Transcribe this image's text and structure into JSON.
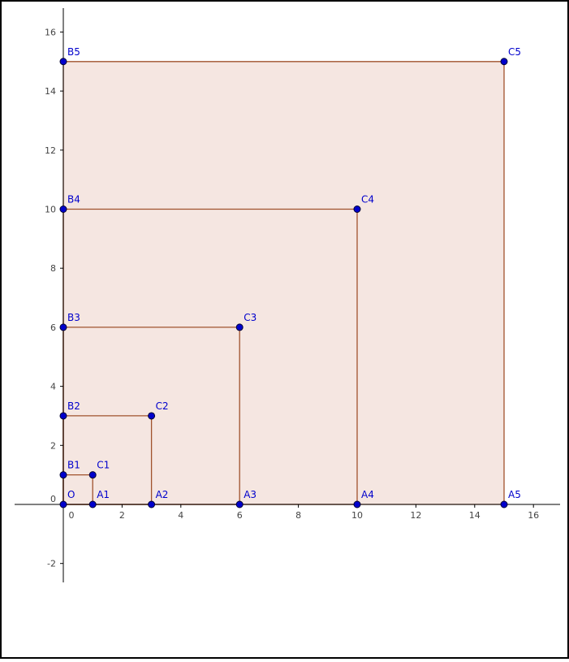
{
  "canvas": {
    "background": "#ffffff",
    "border_color": "#000000",
    "axis_color": "#000000",
    "tick_label_color": "#444444"
  },
  "axes": {
    "x_ticks": [
      0,
      2,
      4,
      6,
      8,
      10,
      12,
      14,
      16
    ],
    "y_ticks": [
      -2,
      0,
      2,
      4,
      6,
      8,
      10,
      12,
      14,
      16
    ],
    "x_range": [
      -1.6,
      17.2
    ],
    "y_range": [
      -2.7,
      16.5
    ]
  },
  "style": {
    "fill_color": "#f5e6e1",
    "edge_color": "#a0522d",
    "point_fill": "#0000cc",
    "point_stroke": "#000033",
    "label_color": "#0000cc"
  },
  "points": [
    {
      "name": "O",
      "x": 0,
      "y": 0
    },
    {
      "name": "A1",
      "x": 1,
      "y": 0
    },
    {
      "name": "A2",
      "x": 3,
      "y": 0
    },
    {
      "name": "A3",
      "x": 6,
      "y": 0
    },
    {
      "name": "A4",
      "x": 10,
      "y": 0
    },
    {
      "name": "A5",
      "x": 15,
      "y": 0
    },
    {
      "name": "B1",
      "x": 0,
      "y": 1
    },
    {
      "name": "B2",
      "x": 0,
      "y": 3
    },
    {
      "name": "B3",
      "x": 0,
      "y": 6
    },
    {
      "name": "B4",
      "x": 0,
      "y": 10
    },
    {
      "name": "B5",
      "x": 0,
      "y": 15
    },
    {
      "name": "C1",
      "x": 1,
      "y": 1
    },
    {
      "name": "C2",
      "x": 3,
      "y": 3
    },
    {
      "name": "C3",
      "x": 6,
      "y": 6
    },
    {
      "name": "C4",
      "x": 10,
      "y": 10
    },
    {
      "name": "C5",
      "x": 15,
      "y": 15
    }
  ],
  "squares": [
    {
      "corners": [
        "O",
        "A5",
        "C5",
        "B5"
      ]
    },
    {
      "corners": [
        "O",
        "A4",
        "C4",
        "B4"
      ]
    },
    {
      "corners": [
        "O",
        "A3",
        "C3",
        "B3"
      ]
    },
    {
      "corners": [
        "O",
        "A2",
        "C2",
        "B2"
      ]
    },
    {
      "corners": [
        "O",
        "A1",
        "C1",
        "B1"
      ]
    }
  ]
}
